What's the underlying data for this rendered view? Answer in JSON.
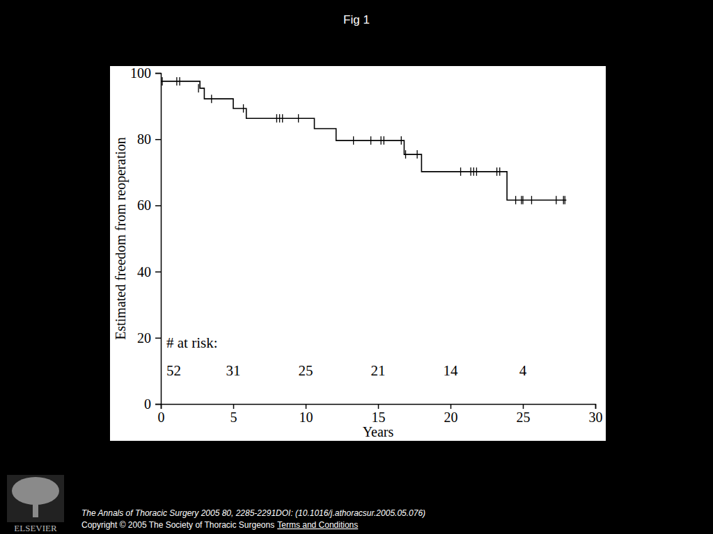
{
  "page": {
    "title": "Fig 1",
    "citation": "The Annals of Thoracic Surgery 2005 80, 2285-2291DOI: (10.1016/j.athoracsur.2005.05.076)",
    "copyright": "Copyright © 2005 The Society of Thoracic Surgeons",
    "link": "Terms and Conditions",
    "publisher": "ELSEVIER"
  },
  "chart_data": {
    "type": "line",
    "x_label": "Years",
    "y_label": "Estimated freedom from reoperation",
    "xlim": [
      0,
      30
    ],
    "xticks": [
      0,
      5,
      10,
      15,
      20,
      25,
      30
    ],
    "ylim": [
      0,
      100
    ],
    "yticks": [
      0,
      20,
      40,
      60,
      80,
      100
    ],
    "grid": false,
    "series": [
      {
        "type": "line",
        "line_style": "step",
        "color": "#000000",
        "x": [
          0,
          2.7,
          3.0,
          5.0,
          5.9,
          10.6,
          12.1,
          16.8,
          18.0,
          23.9,
          28.0
        ],
        "values": [
          97.5,
          95.4,
          92.2,
          89.3,
          86.3,
          83.2,
          79.6,
          75.4,
          70.2,
          61.6,
          61.6
        ]
      },
      {
        "type": "scatter",
        "marker": "vline",
        "color": "#000000",
        "x": [
          0.1,
          1.1,
          1.3,
          2.6,
          3.5,
          5.7,
          8.0,
          8.2,
          8.4,
          9.5,
          13.3,
          14.5,
          15.2,
          15.4,
          16.6,
          16.9,
          17.7,
          20.7,
          21.4,
          21.6,
          21.8,
          23.2,
          23.4,
          24.5,
          24.9,
          25.0,
          25.6,
          27.3,
          27.8,
          27.9
        ],
        "values": [
          97.5,
          97.5,
          97.5,
          95.4,
          92.2,
          89.3,
          86.3,
          86.3,
          86.3,
          86.3,
          79.6,
          79.6,
          79.6,
          79.6,
          79.6,
          75.4,
          75.4,
          70.2,
          70.2,
          70.2,
          70.2,
          70.2,
          70.2,
          61.6,
          61.6,
          61.6,
          61.6,
          61.6,
          61.6,
          61.6
        ]
      }
    ],
    "at_risk": {
      "label": "# at risk:",
      "x": [
        0,
        5,
        10,
        15,
        20,
        25
      ],
      "values": [
        52,
        31,
        25,
        21,
        14,
        4
      ]
    }
  }
}
